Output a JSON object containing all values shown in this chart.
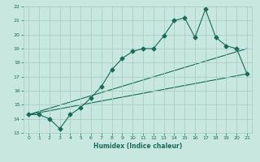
{
  "xlabel": "Humidex (Indice chaleur)",
  "ylabel": "",
  "xlim": [
    -0.5,
    21.5
  ],
  "ylim": [
    13,
    22
  ],
  "xticks": [
    0,
    1,
    2,
    3,
    4,
    5,
    6,
    7,
    8,
    9,
    10,
    11,
    12,
    13,
    14,
    15,
    16,
    17,
    18,
    19,
    20,
    21
  ],
  "yticks": [
    13,
    14,
    15,
    16,
    17,
    18,
    19,
    20,
    21,
    22
  ],
  "bg_color": "#c8e8df",
  "grid_color": "#aacfc7",
  "line_color": "#1a6b5a",
  "line1_x": [
    0,
    1,
    2,
    3,
    4,
    5,
    6,
    7,
    8,
    9,
    10,
    11,
    12,
    13,
    14,
    15,
    16,
    17,
    18,
    19,
    20,
    21
  ],
  "line1_y": [
    14.3,
    14.3,
    14.0,
    13.3,
    14.3,
    14.8,
    15.5,
    16.3,
    17.5,
    18.3,
    18.8,
    19.0,
    19.0,
    19.9,
    21.0,
    21.2,
    19.8,
    21.8,
    19.8,
    19.2,
    19.0,
    17.2
  ],
  "line2_x": [
    0,
    21
  ],
  "line2_y": [
    14.3,
    19.0
  ],
  "line3_x": [
    0,
    21
  ],
  "line3_y": [
    14.3,
    17.2
  ],
  "marker": "D",
  "marker_size": 2.5,
  "line_width": 0.8
}
